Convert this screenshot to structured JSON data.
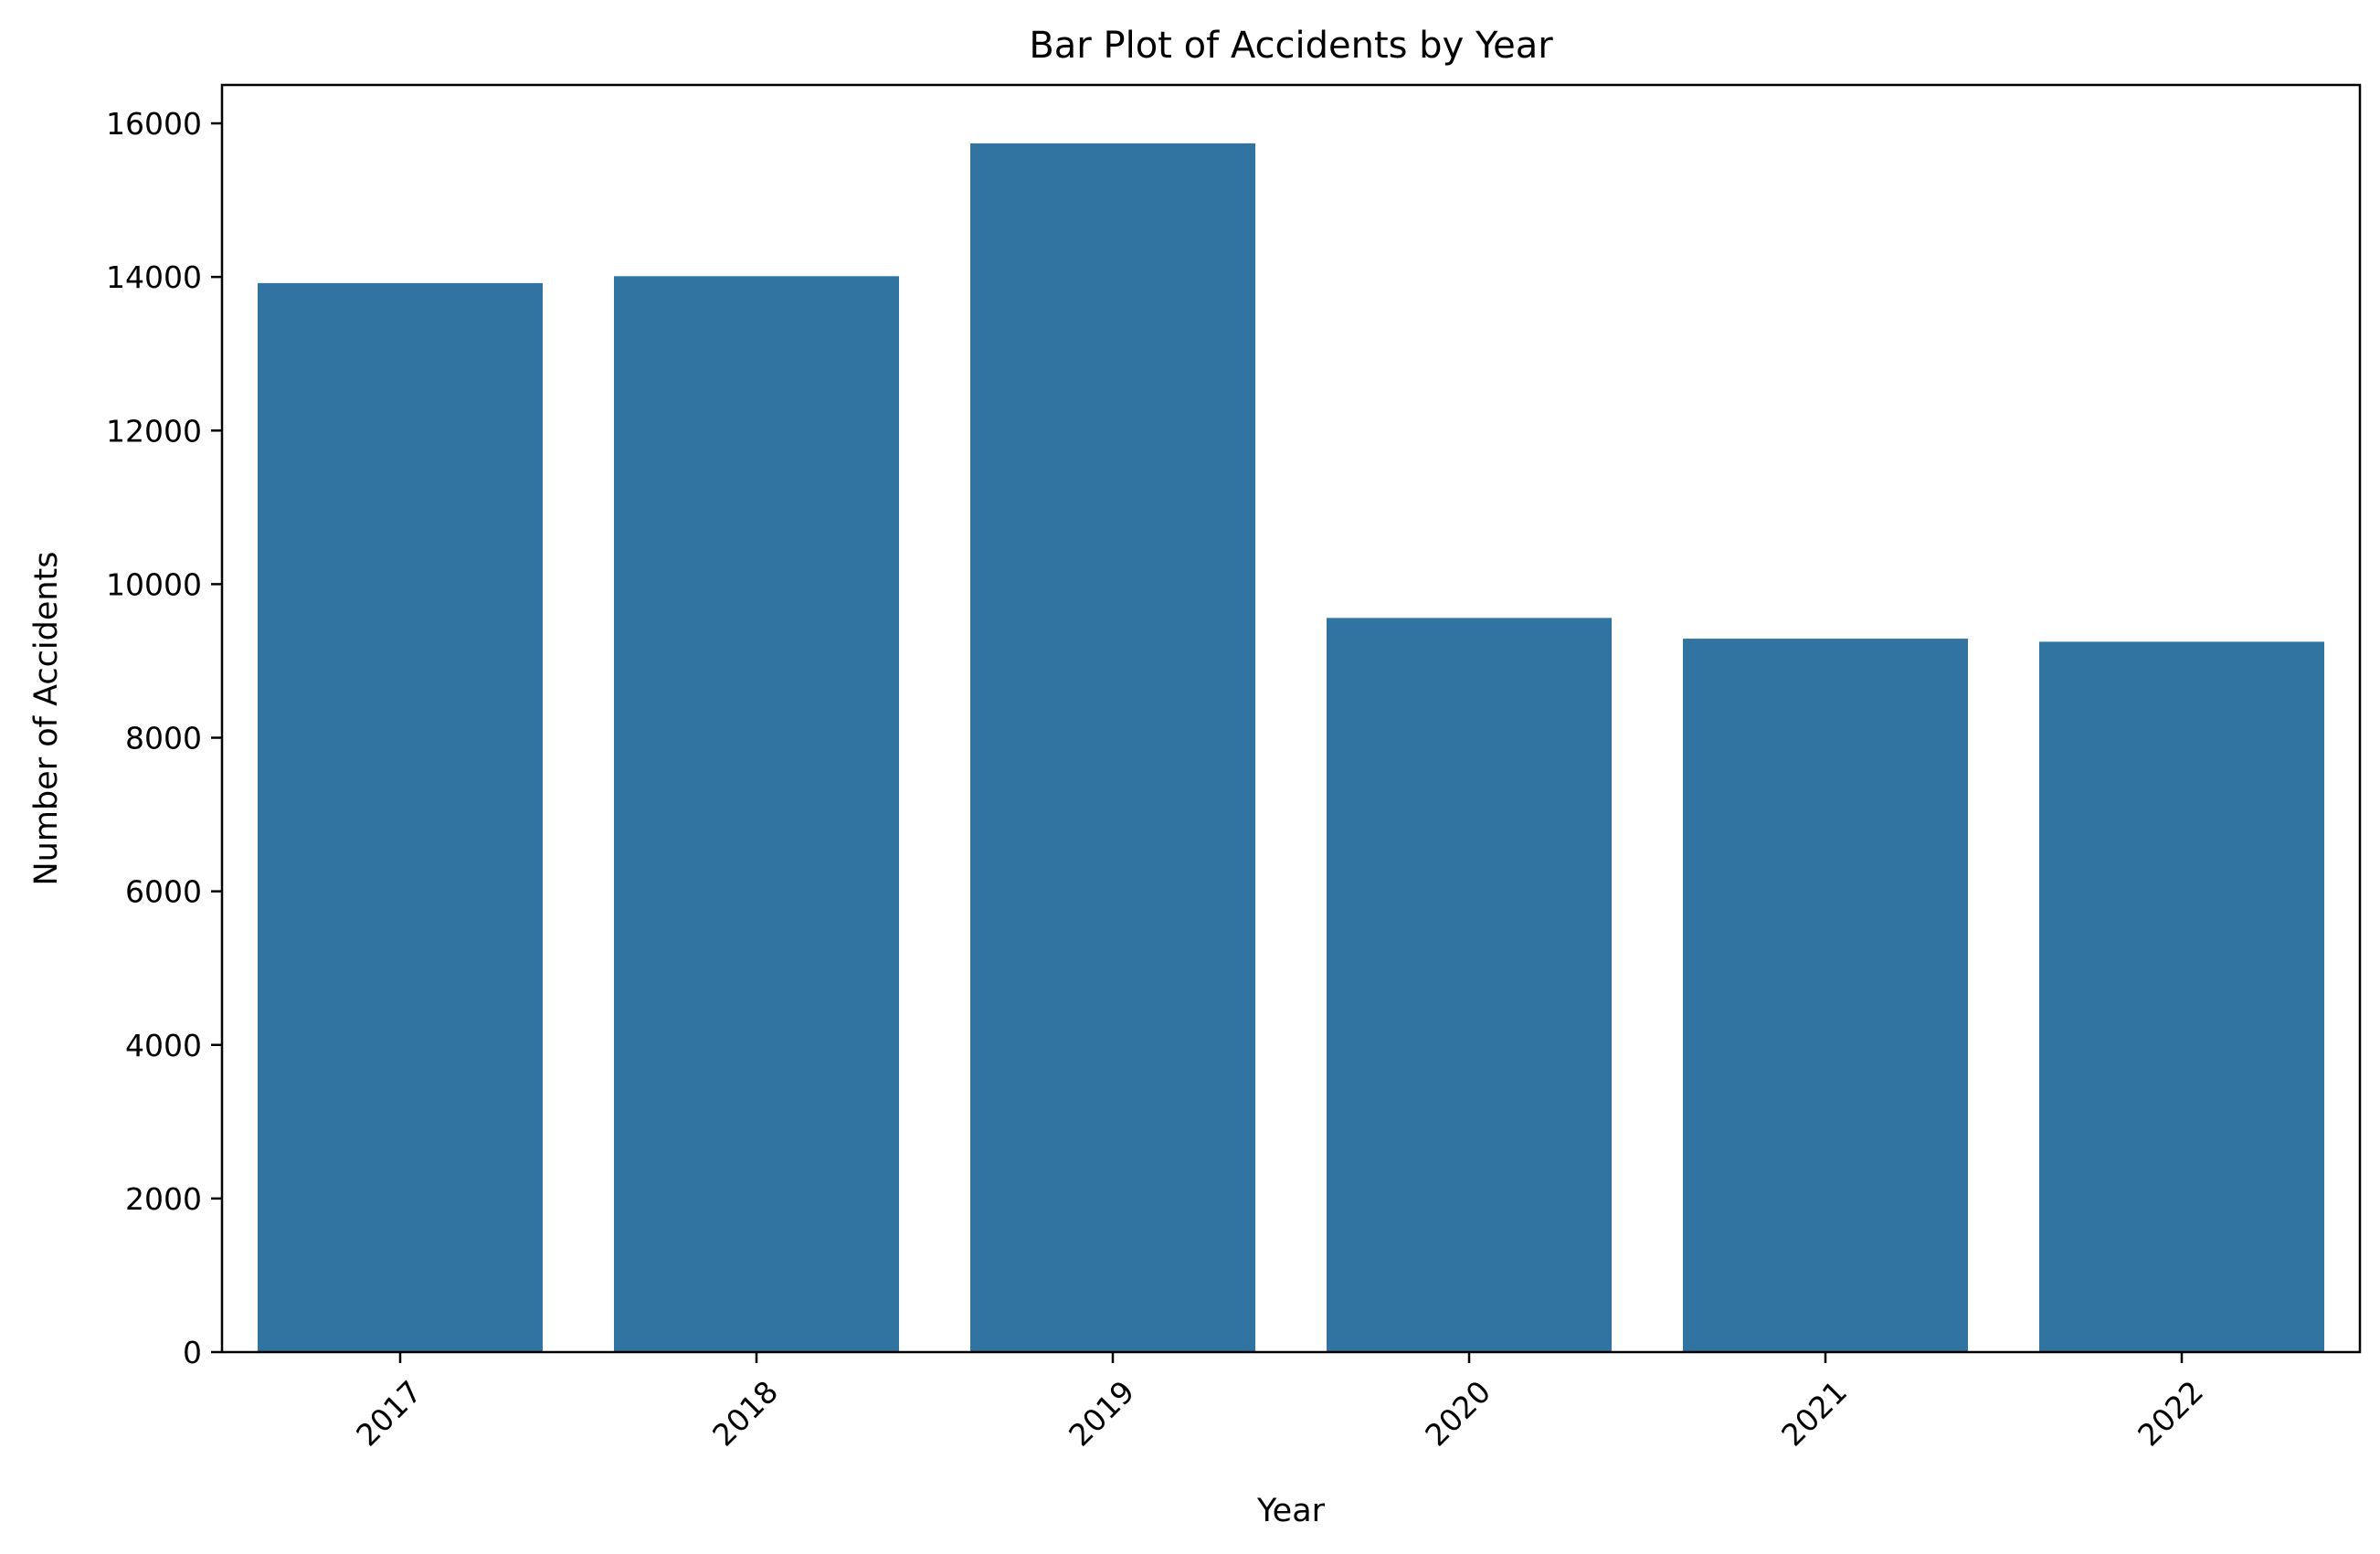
{
  "chart_data": {
    "type": "bar",
    "title": "Bar Plot of Accidents by Year",
    "xlabel": "Year",
    "ylabel": "Number of Accidents",
    "categories": [
      "2017",
      "2018",
      "2019",
      "2020",
      "2021",
      "2022"
    ],
    "values": [
      13920,
      14010,
      15740,
      9560,
      9290,
      9250
    ],
    "ylim": [
      0,
      16500
    ],
    "yticks": [
      0,
      2000,
      4000,
      6000,
      8000,
      10000,
      12000,
      14000,
      16000
    ],
    "bar_color": "#3274a1",
    "grid": false,
    "legend": "none",
    "xtick_rotation": "45 degrees"
  }
}
